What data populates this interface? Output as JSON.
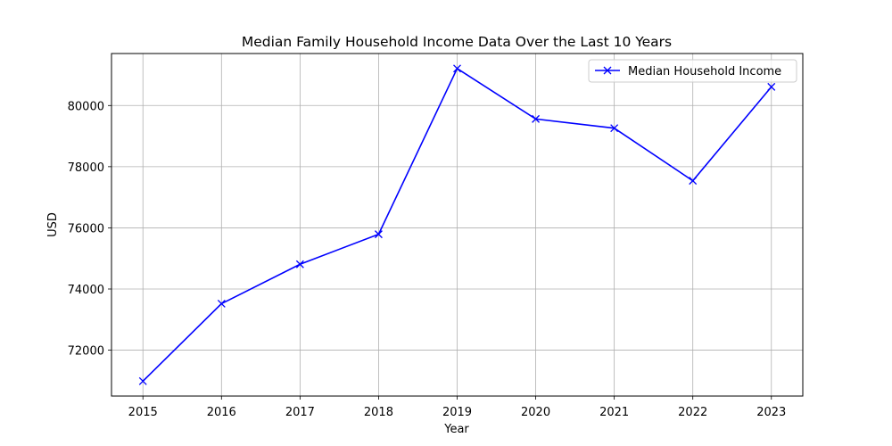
{
  "chart_data": {
    "type": "line",
    "title": "Median Family Household Income Data Over the Last 10 Years",
    "xlabel": "Year",
    "ylabel": "USD",
    "x": [
      2015,
      2016,
      2017,
      2018,
      2019,
      2020,
      2021,
      2022,
      2023
    ],
    "series": [
      {
        "name": "Median Household Income",
        "values": [
          70987,
          73520,
          74810,
          75790,
          81210,
          79560,
          79260,
          77540,
          80610
        ],
        "color": "#0000ff",
        "marker": "x"
      }
    ],
    "xticks": [
      "2015",
      "2016",
      "2017",
      "2018",
      "2019",
      "2020",
      "2021",
      "2022",
      "2023"
    ],
    "yticks": [
      "72000",
      "74000",
      "76000",
      "78000",
      "80000"
    ],
    "ytick_values": [
      72000,
      74000,
      76000,
      78000,
      80000
    ],
    "xlim": [
      2014.6,
      2023.4
    ],
    "ylim": [
      70500,
      81700
    ],
    "grid": true,
    "legend_position": "top-right"
  }
}
